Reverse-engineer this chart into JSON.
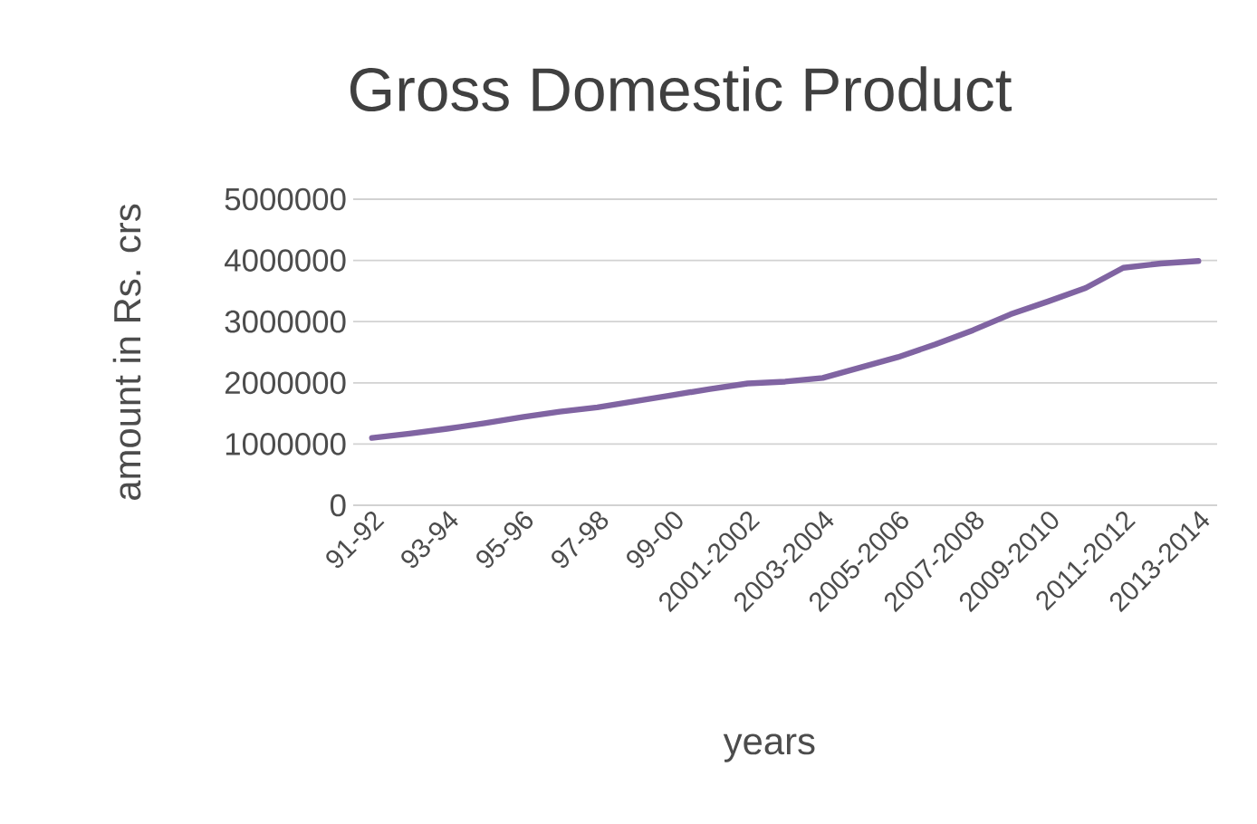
{
  "chart_data": {
    "type": "line",
    "title": "Gross Domestic Product",
    "xlabel": "years",
    "ylabel": "amount in Rs. crs",
    "categories": [
      "91-92",
      null,
      "93-94",
      null,
      "95-96",
      null,
      "97-98",
      null,
      "99-00",
      null,
      "2001-2002",
      null,
      "2003-2004",
      null,
      "2005-2006",
      null,
      "2007-2008",
      null,
      "2009-2010",
      null,
      "2011-2012",
      null,
      "2013-2014"
    ],
    "series": [
      {
        "color": "#8064a2",
        "values": [
          1100000,
          1170000,
          1250000,
          1340000,
          1440000,
          1530000,
          1600000,
          1700000,
          1800000,
          1900000,
          1990000,
          2020000,
          2080000,
          2250000,
          2420000,
          2630000,
          2860000,
          3120000,
          3330000,
          3550000,
          3880000,
          3950000,
          3990000
        ]
      }
    ],
    "ylim": [
      0,
      5000000
    ],
    "yticks": [
      0,
      1000000,
      2000000,
      3000000,
      4000000,
      5000000
    ],
    "grid": "y",
    "marker": "none",
    "line_style": "solid"
  }
}
